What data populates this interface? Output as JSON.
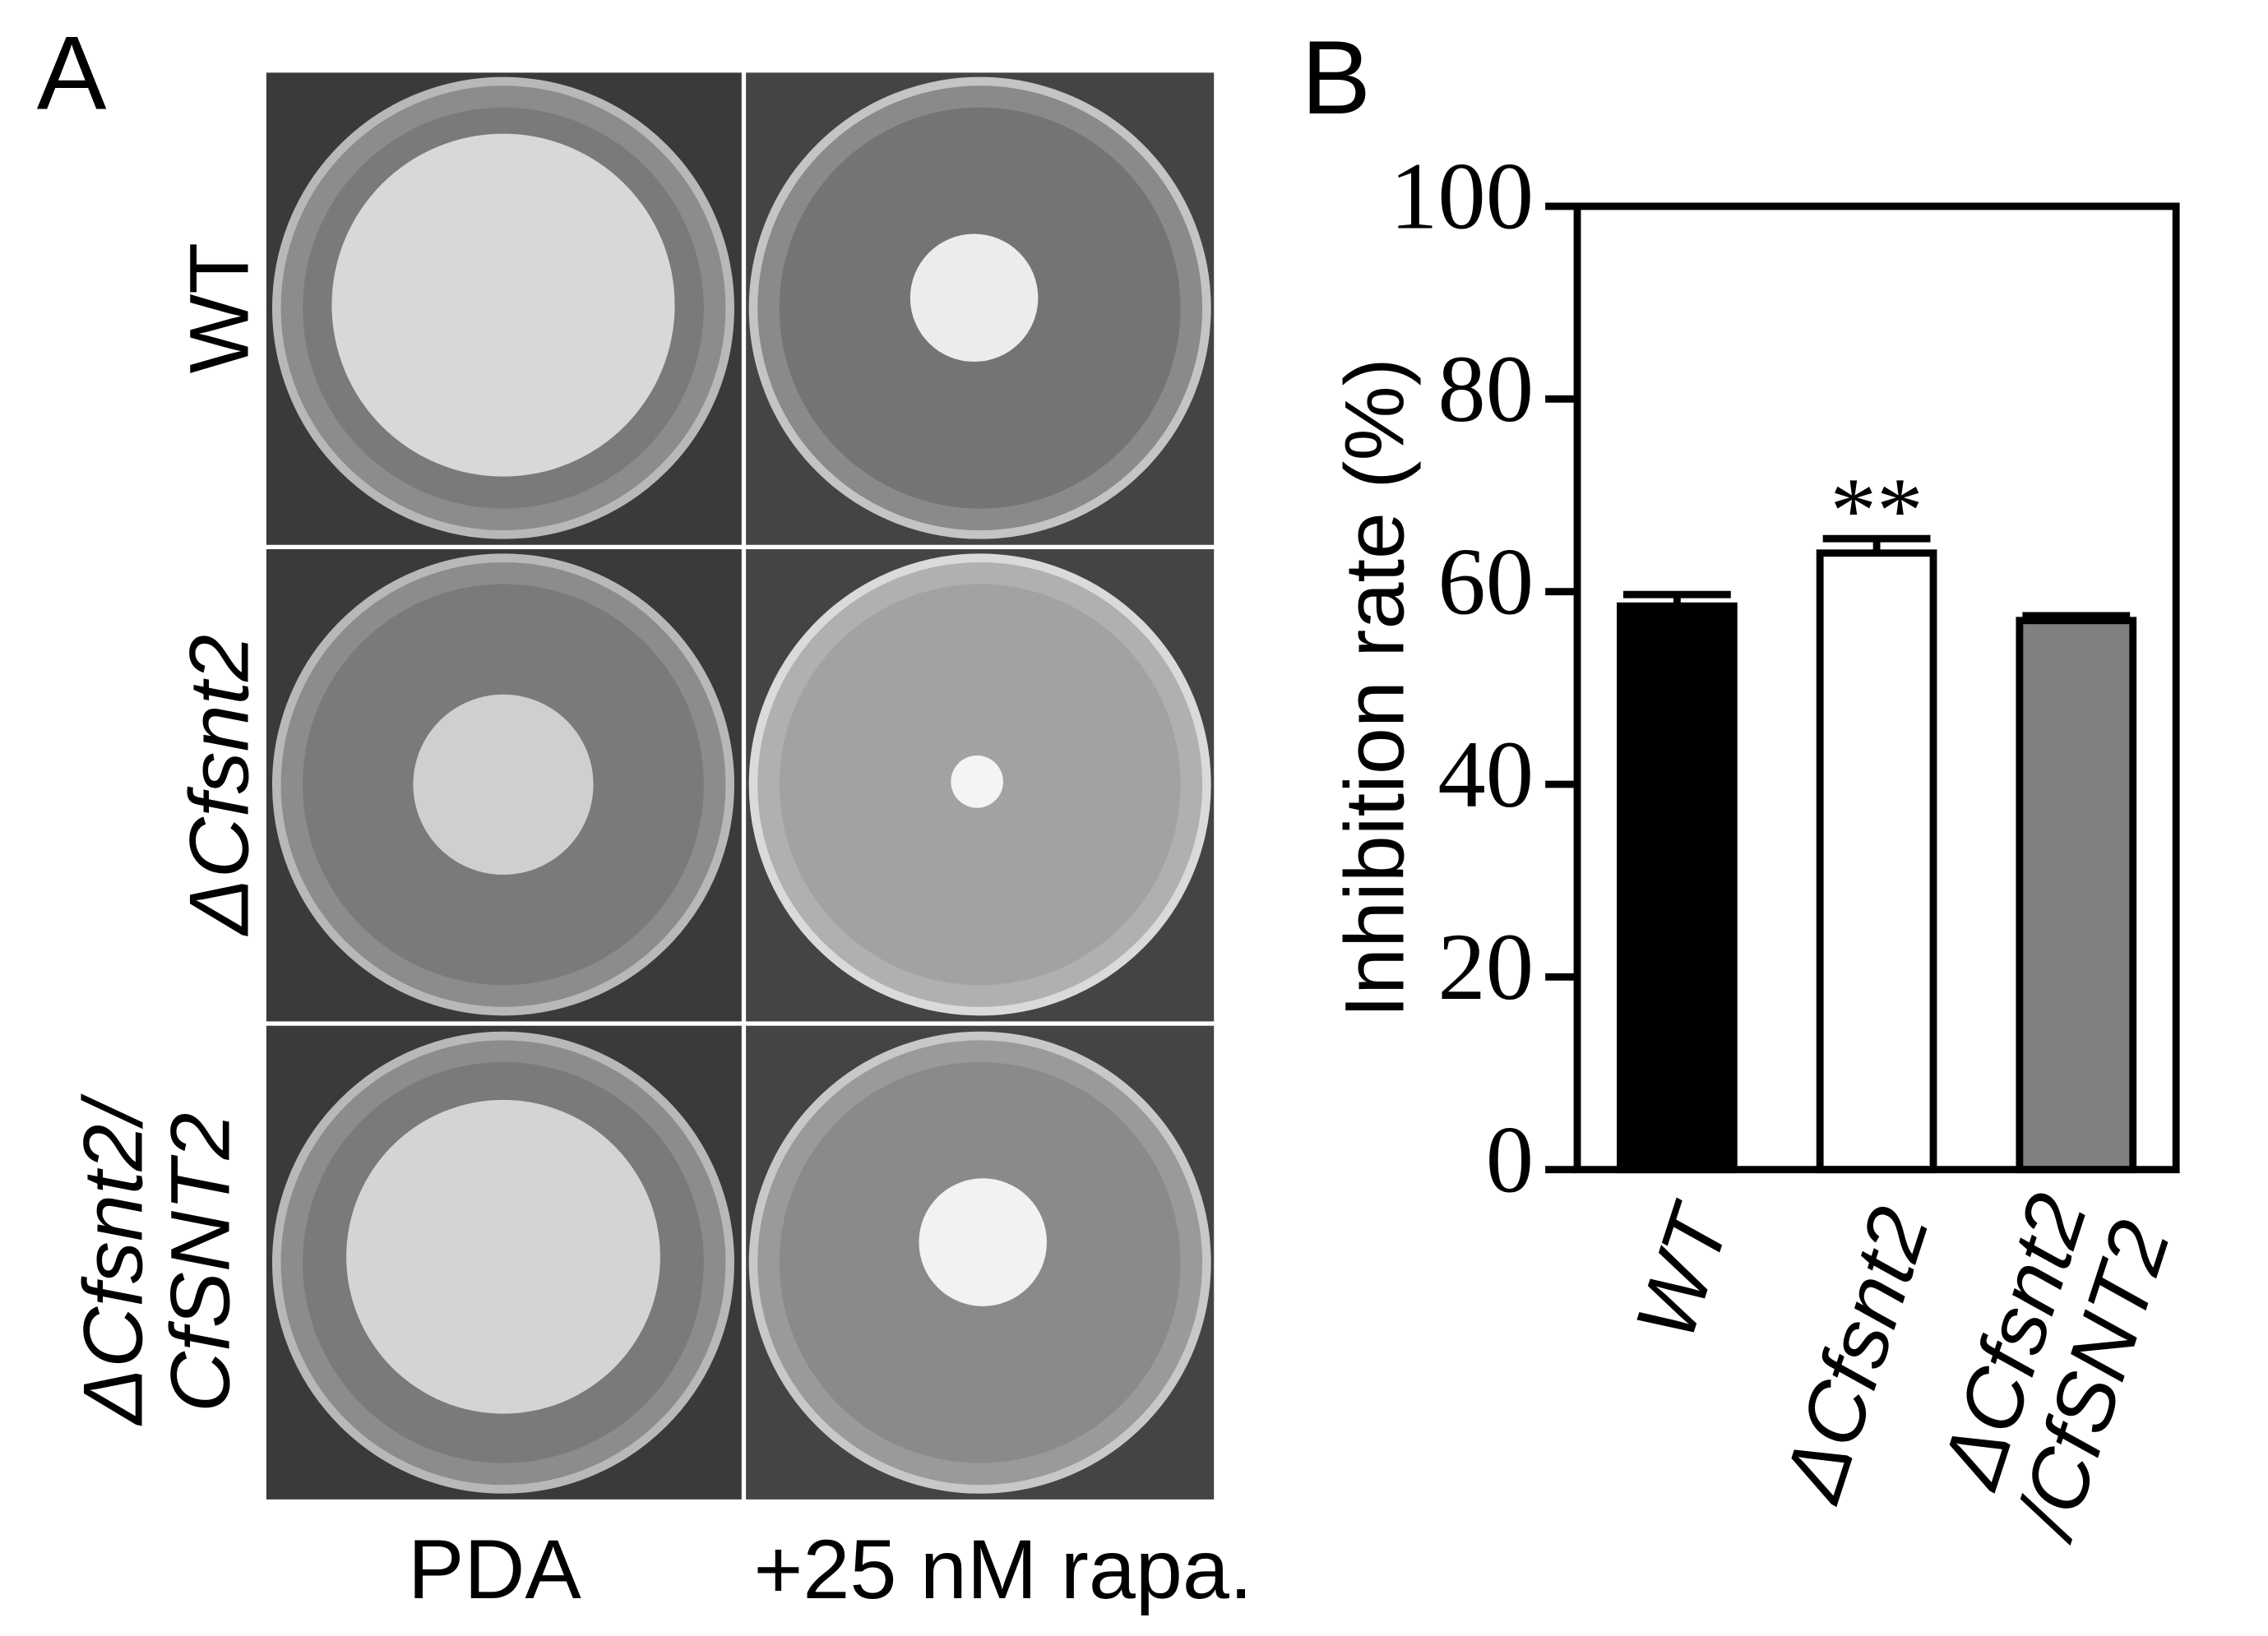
{
  "panel_a": {
    "label": "A",
    "rows": [
      "WT",
      "ΔCfsnt2",
      "ΔCfsnt2/CfSNT2"
    ],
    "columns": [
      "PDA",
      "+25 nM rapa."
    ]
  },
  "chart_data": {
    "type": "bar",
    "panel_label": "B",
    "y_label": "Inhibition rate (%)",
    "categories": [
      "WT",
      "ΔCfsnt2",
      "ΔCfsnt2/CfSNT2"
    ],
    "values": [
      58.5,
      64,
      57
    ],
    "errors": [
      1.2,
      1.5,
      0.5
    ],
    "colors": [
      "#000000",
      "#ffffff",
      "#808080"
    ],
    "annotations": [
      null,
      "**",
      null
    ],
    "ylim": [
      0,
      100
    ],
    "yticks": [
      0,
      20,
      40,
      60,
      80,
      100
    ]
  }
}
